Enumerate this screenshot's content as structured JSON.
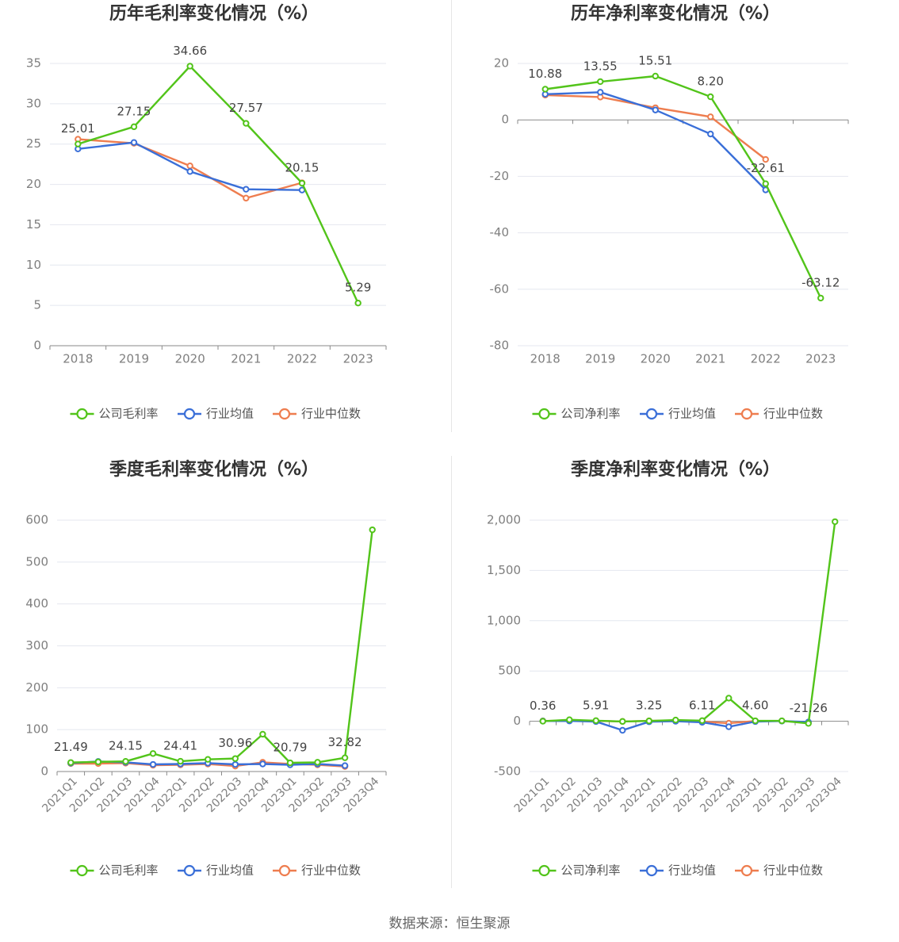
{
  "source": "数据来源：恒生聚源",
  "colors": {
    "company": "#52c41a",
    "avg": "#3a6fd8",
    "median": "#ee7d4f"
  },
  "chart_data": [
    {
      "type": "line",
      "title": "历年毛利率变化情况（%）",
      "x": [
        "2018",
        "2019",
        "2020",
        "2021",
        "2022",
        "2023"
      ],
      "ylim": [
        0,
        35
      ],
      "yticks": [
        0,
        5,
        10,
        15,
        20,
        25,
        30,
        35
      ],
      "grid": true,
      "legend_position": "bottom",
      "x_rotated": false,
      "series": [
        {
          "name": "公司毛利率",
          "key": "company",
          "values": [
            25.01,
            27.15,
            34.66,
            27.57,
            20.15,
            5.29
          ]
        },
        {
          "name": "行业均值",
          "key": "avg",
          "values": [
            24.4,
            25.2,
            21.6,
            19.4,
            19.3,
            null
          ]
        },
        {
          "name": "行业中位数",
          "key": "median",
          "values": [
            25.6,
            25.1,
            22.3,
            18.3,
            20.2,
            null
          ]
        }
      ],
      "data_labels": [
        "25.01",
        "27.15",
        "34.66",
        "27.57",
        "20.15",
        "5.29"
      ]
    },
    {
      "type": "line",
      "title": "历年净利率变化情况（%）",
      "x": [
        "2018",
        "2019",
        "2020",
        "2021",
        "2022",
        "2023"
      ],
      "ylim": [
        -80,
        20
      ],
      "yticks": [
        -80,
        -60,
        -40,
        -20,
        0,
        20
      ],
      "grid": true,
      "legend_position": "bottom",
      "x_rotated": false,
      "series": [
        {
          "name": "公司净利率",
          "key": "company",
          "values": [
            10.88,
            13.55,
            15.51,
            8.2,
            -22.61,
            -63.12
          ]
        },
        {
          "name": "行业均值",
          "key": "avg",
          "values": [
            9.1,
            9.8,
            3.5,
            -5.0,
            -24.8,
            null
          ]
        },
        {
          "name": "行业中位数",
          "key": "median",
          "values": [
            8.8,
            8.1,
            4.3,
            1.1,
            -14.0,
            null
          ]
        }
      ],
      "data_labels": [
        "10.88",
        "13.55",
        "15.51",
        "8.20",
        "-22.61",
        "-63.12"
      ]
    },
    {
      "type": "line",
      "title": "季度毛利率变化情况（%）",
      "x": [
        "2021Q1",
        "2021Q2",
        "2021Q3",
        "2021Q4",
        "2022Q1",
        "2022Q2",
        "2022Q3",
        "2022Q4",
        "2023Q1",
        "2023Q2",
        "2023Q3",
        "2023Q4"
      ],
      "ylim": [
        0,
        600
      ],
      "yticks": [
        0,
        100,
        200,
        300,
        400,
        500,
        600
      ],
      "grid": true,
      "legend_position": "bottom",
      "x_rotated": true,
      "series": [
        {
          "name": "公司毛利率",
          "key": "company",
          "values": [
            21.49,
            23.0,
            24.15,
            43.0,
            24.41,
            29.0,
            30.96,
            89.0,
            20.79,
            22.0,
            32.82,
            577.0
          ]
        },
        {
          "name": "行业均值",
          "key": "avg",
          "values": [
            20.0,
            24.0,
            22.0,
            17.0,
            18.0,
            20.0,
            17.0,
            18.0,
            16.0,
            18.0,
            14.0,
            null
          ]
        },
        {
          "name": "行业中位数",
          "key": "median",
          "values": [
            19.0,
            19.0,
            20.0,
            15.0,
            16.0,
            18.0,
            13.0,
            22.0,
            18.0,
            16.0,
            12.0,
            null
          ]
        }
      ],
      "data_labels": [
        "21.49",
        "",
        "24.15",
        "",
        "24.41",
        "",
        "30.96",
        "",
        "20.79",
        "",
        "32.82",
        ""
      ]
    },
    {
      "type": "line",
      "title": "季度净利率变化情况（%）",
      "x": [
        "2021Q1",
        "2021Q2",
        "2021Q3",
        "2021Q4",
        "2022Q1",
        "2022Q2",
        "2022Q3",
        "2022Q4",
        "2023Q1",
        "2023Q2",
        "2023Q3",
        "2023Q4"
      ],
      "ylim": [
        -500,
        2000
      ],
      "yticks": [
        -500,
        0,
        500,
        1000,
        1500,
        2000
      ],
      "ytick_labels": [
        "-500",
        "0",
        "500",
        "1,000",
        "1,500",
        "2,000"
      ],
      "grid": true,
      "legend_position": "bottom",
      "x_rotated": true,
      "series": [
        {
          "name": "公司净利率",
          "key": "company",
          "values": [
            0.36,
            15.0,
            5.91,
            -2.0,
            3.25,
            12.0,
            6.11,
            230.0,
            4.6,
            4.0,
            -21.26,
            1985.0
          ]
        },
        {
          "name": "行业均值",
          "key": "avg",
          "values": [
            2.0,
            3.0,
            -3.0,
            -90.0,
            -5.0,
            0.0,
            -10.0,
            -55.0,
            -3.0,
            2.0,
            -8.0,
            null
          ]
        },
        {
          "name": "行业中位数",
          "key": "median",
          "values": [
            3.0,
            5.0,
            4.0,
            -2.0,
            4.0,
            6.0,
            -4.0,
            -20.0,
            2.0,
            3.0,
            -15.0,
            null
          ]
        }
      ],
      "data_labels": [
        "0.36",
        "",
        "5.91",
        "",
        "3.25",
        "",
        "6.11",
        "",
        "4.60",
        "",
        "-21.26",
        ""
      ]
    }
  ]
}
